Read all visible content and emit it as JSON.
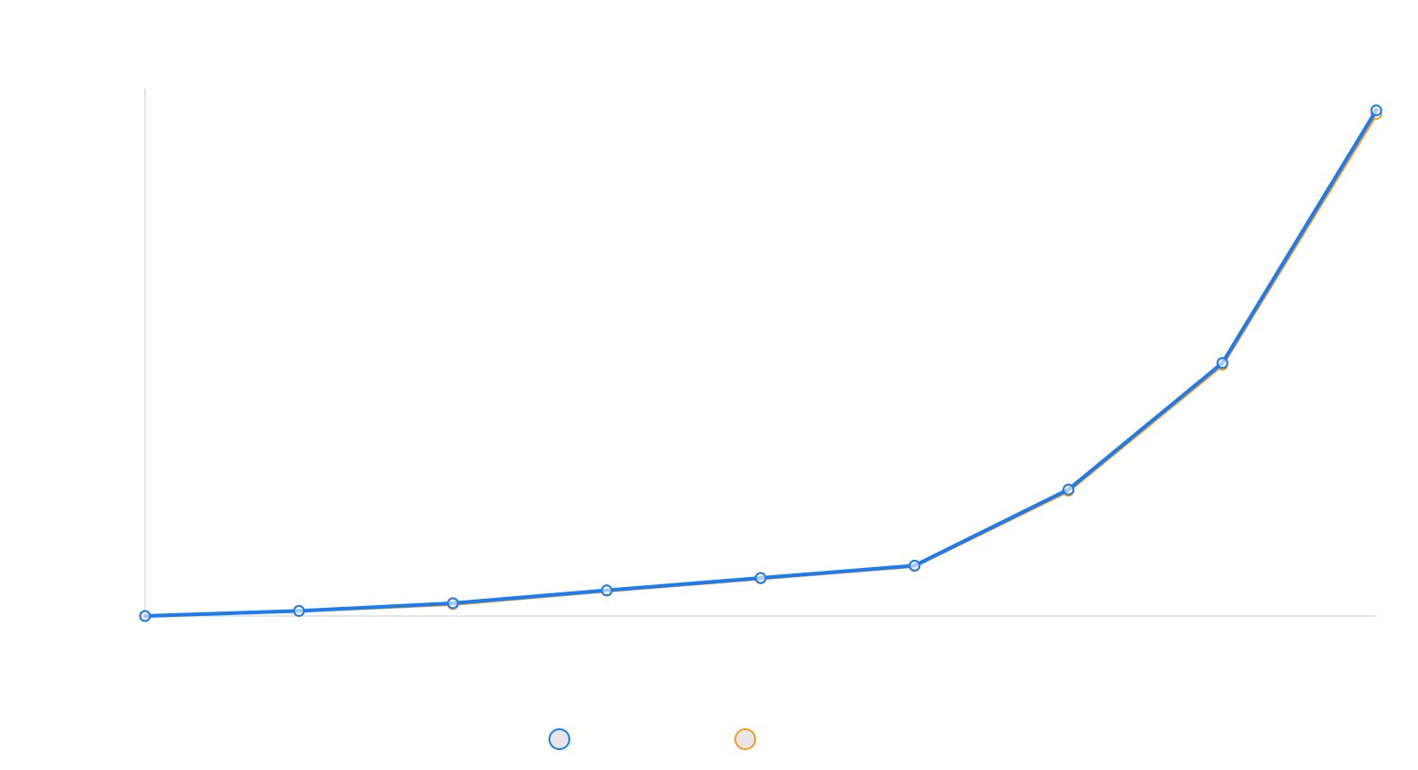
{
  "chart_data": {
    "type": "line",
    "title": "",
    "xlabel": "",
    "ylabel": "",
    "x": [
      0,
      1,
      2,
      3,
      4,
      5,
      6,
      7,
      8
    ],
    "xlim": [
      0,
      8
    ],
    "ylim": [
      0,
      115
    ],
    "grid": false,
    "legend_position": "bottom-center",
    "series": [
      {
        "name": "",
        "color": "#f59a23",
        "values": [
          0,
          1.1,
          2.6,
          5.5,
          8.2,
          10.9,
          27.3,
          54.8,
          109.5
        ]
      },
      {
        "name": "",
        "color": "#1a7cf0",
        "values": [
          0,
          1.1,
          2.8,
          5.6,
          8.3,
          11.0,
          27.6,
          55.2,
          110.3
        ]
      }
    ],
    "legend": [
      {
        "marker": "circle",
        "stroke": "#1a7cf0",
        "fill": "#e6e6e6"
      },
      {
        "marker": "circle",
        "stroke": "#f59a23",
        "fill": "#e6e6e6"
      }
    ],
    "colors": {
      "axis": "#dddddd",
      "marker_fill": "#ffffff"
    }
  }
}
